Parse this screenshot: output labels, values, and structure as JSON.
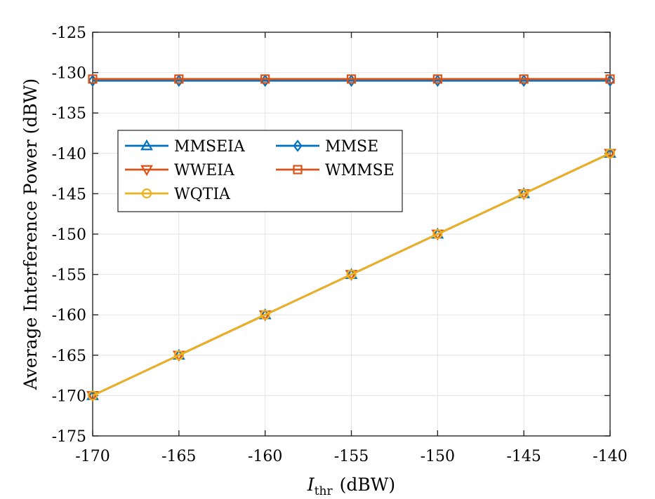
{
  "chart_data": {
    "type": "line",
    "title": "",
    "xlabel": {
      "symbol": "I",
      "subscript": "thr",
      "unit": "(dBW)"
    },
    "ylabel": "Average Interference Power (dBW)",
    "xlim": [
      -170,
      -140
    ],
    "ylim": [
      -175,
      -125
    ],
    "x_ticks": [
      -170,
      -165,
      -160,
      -155,
      -150,
      -145,
      -140
    ],
    "y_ticks": [
      -125,
      -130,
      -135,
      -140,
      -145,
      -150,
      -155,
      -160,
      -165,
      -170,
      -175
    ],
    "grid": true,
    "legend_position": "upper-left",
    "x": [
      -170,
      -165,
      -160,
      -155,
      -150,
      -145,
      -140
    ],
    "series": [
      {
        "name": "MMSEIA",
        "color": "#0072BD",
        "marker": "triangle-up",
        "values": [
          -170,
          -165,
          -160,
          -155,
          -150,
          -145,
          -140
        ]
      },
      {
        "name": "MMSE",
        "color": "#0072BD",
        "marker": "diamond",
        "values": [
          -131,
          -131,
          -131,
          -131,
          -131,
          -131,
          -131
        ]
      },
      {
        "name": "WWEIA",
        "color": "#D95319",
        "marker": "triangle-down",
        "values": [
          -170,
          -165,
          -160,
          -155,
          -150,
          -145,
          -140
        ]
      },
      {
        "name": "WMMSE",
        "color": "#D95319",
        "marker": "square",
        "values": [
          -130.8,
          -130.8,
          -130.8,
          -130.8,
          -130.8,
          -130.8,
          -130.8
        ]
      },
      {
        "name": "WQTIA",
        "color": "#EDB120",
        "marker": "circle",
        "values": [
          -170,
          -165,
          -160,
          -155,
          -150,
          -145,
          -140
        ]
      }
    ]
  }
}
